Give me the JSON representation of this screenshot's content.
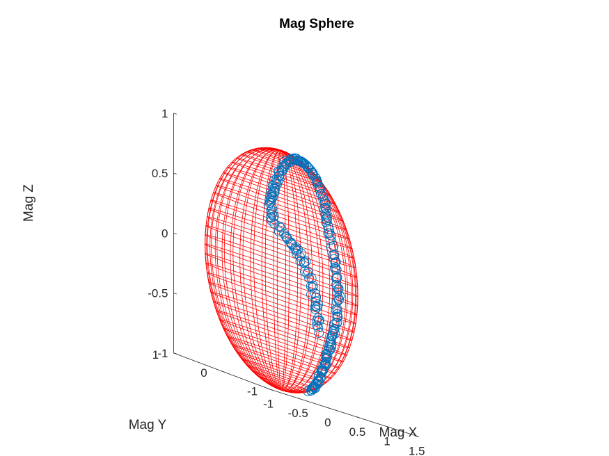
{
  "chart_data": {
    "type": "scatter",
    "title": "Mag Sphere",
    "xlabel": "Mag X",
    "ylabel": "Mag Y",
    "zlabel": "Mag Z",
    "xlim": [
      -1,
      1.5
    ],
    "ylim": [
      -1,
      1
    ],
    "zlim": [
      -1,
      1
    ],
    "x_ticks": [
      "-1",
      "-0.5",
      "0",
      "0.5",
      "1",
      "1.5"
    ],
    "y_ticks": [
      "-1",
      "0",
      "1"
    ],
    "z_ticks": [
      "-1",
      "-0.5",
      "0",
      "0.5",
      "1"
    ],
    "grid": false,
    "legend": "none",
    "colors": {
      "sphere": "#ff0000",
      "points": "#0072bd",
      "axes": "#262626"
    },
    "sphere": {
      "center": [
        0,
        0,
        0
      ],
      "radius": 1
    },
    "series": [
      {
        "marker": "o",
        "approximate_track": [
          [
            -0.1,
            -0.85,
            -0.35
          ],
          [
            -0.18,
            -0.8,
            -0.1
          ],
          [
            -0.3,
            -0.8,
            0.1
          ],
          [
            -0.45,
            -0.74,
            0.25
          ],
          [
            -0.62,
            -0.56,
            0.4
          ],
          [
            -0.6,
            -0.53,
            0.58
          ],
          [
            -0.5,
            -0.48,
            0.72
          ],
          [
            -0.3,
            -0.4,
            0.86
          ],
          [
            0.0,
            -0.25,
            0.97
          ],
          [
            0.2,
            -0.2,
            0.96
          ],
          [
            0.45,
            -0.1,
            0.89
          ],
          [
            0.7,
            0.0,
            0.72
          ],
          [
            0.85,
            0.1,
            0.5
          ],
          [
            0.97,
            0.1,
            0.22
          ],
          [
            1.0,
            0.05,
            -0.05
          ],
          [
            0.97,
            0.05,
            -0.25
          ],
          [
            0.9,
            0.05,
            -0.45
          ],
          [
            0.8,
            0.05,
            -0.6
          ],
          [
            0.68,
            0.0,
            -0.74
          ],
          [
            0.5,
            -0.1,
            -0.86
          ],
          [
            0.3,
            -0.2,
            -0.93
          ]
        ]
      }
    ]
  }
}
